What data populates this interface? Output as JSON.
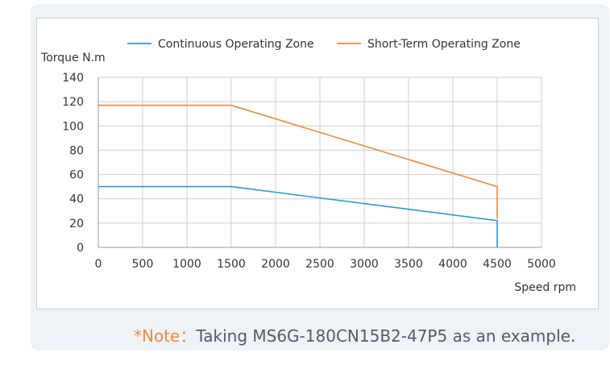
{
  "chart_data": {
    "type": "line",
    "xlabel": "Speed rpm",
    "ylabel": "Torque N.m",
    "xlim": [
      0,
      5000
    ],
    "ylim": [
      0,
      140
    ],
    "x_ticks": [
      0,
      500,
      1000,
      1500,
      2000,
      2500,
      3000,
      3500,
      4000,
      4500,
      5000
    ],
    "y_ticks": [
      0,
      20,
      40,
      60,
      80,
      100,
      120,
      140
    ],
    "grid": true,
    "legend_position": "top",
    "series": [
      {
        "name": "Continuous Operating Zone",
        "color": "#2b9ad6",
        "points": [
          [
            0,
            50
          ],
          [
            1500,
            50
          ],
          [
            4500,
            22
          ],
          [
            4500,
            0
          ]
        ]
      },
      {
        "name": "Short-Term Operating Zone",
        "color": "#f08a3c",
        "points": [
          [
            0,
            117
          ],
          [
            1500,
            117
          ],
          [
            4500,
            50
          ],
          [
            4500,
            24
          ]
        ]
      }
    ]
  },
  "note": {
    "prefix": "*Note：",
    "text": "Taking MS6G-180CN15B2-47P5 as an example."
  }
}
